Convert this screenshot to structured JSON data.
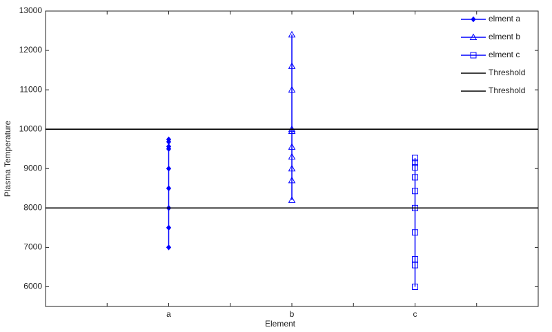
{
  "chart_data": {
    "type": "line",
    "xlabel": "Element",
    "ylabel": "Plasma Temperature",
    "xlim": [
      0,
      4
    ],
    "ylim": [
      5500,
      13000
    ],
    "xticks": [
      {
        "value": 0.5,
        "label": null
      },
      {
        "value": 1,
        "label": "a"
      },
      {
        "value": 1.5,
        "label": null
      },
      {
        "value": 2,
        "label": "b"
      },
      {
        "value": 2.5,
        "label": null
      },
      {
        "value": 3,
        "label": "c"
      },
      {
        "value": 3.5,
        "label": null
      }
    ],
    "yticks": [
      6000,
      7000,
      8000,
      9000,
      10000,
      11000,
      12000,
      13000
    ],
    "legend": "northeast",
    "series": [
      {
        "name": "elment a",
        "color": "#0000ff",
        "marker": "diamond",
        "x": [
          1,
          1,
          1,
          1,
          1,
          1,
          1,
          1,
          1
        ],
        "values": [
          7000,
          7500,
          8000,
          8500,
          9000,
          9500,
          9560,
          9680,
          9740
        ]
      },
      {
        "name": "elment b",
        "color": "#0000ff",
        "marker": "triangle",
        "x": [
          2,
          2,
          2,
          2,
          2,
          2,
          2,
          2,
          2,
          2
        ],
        "values": [
          8200,
          8700,
          9000,
          9300,
          9550,
          9950,
          10000,
          11000,
          11600,
          12400
        ]
      },
      {
        "name": "elment c",
        "color": "#0000ff",
        "marker": "square",
        "x": [
          3,
          3,
          3,
          3,
          3,
          3,
          3,
          3,
          3,
          3
        ],
        "values": [
          6000,
          6550,
          6700,
          7380,
          8000,
          8430,
          8780,
          9030,
          9150,
          9270
        ]
      },
      {
        "name": "Threshold",
        "color": "#000000",
        "x": [
          0,
          4
        ],
        "values": [
          10000,
          10000
        ]
      },
      {
        "name": "Threshold",
        "color": "#000000",
        "x": [
          0,
          4
        ],
        "values": [
          8000,
          8000
        ]
      }
    ]
  }
}
